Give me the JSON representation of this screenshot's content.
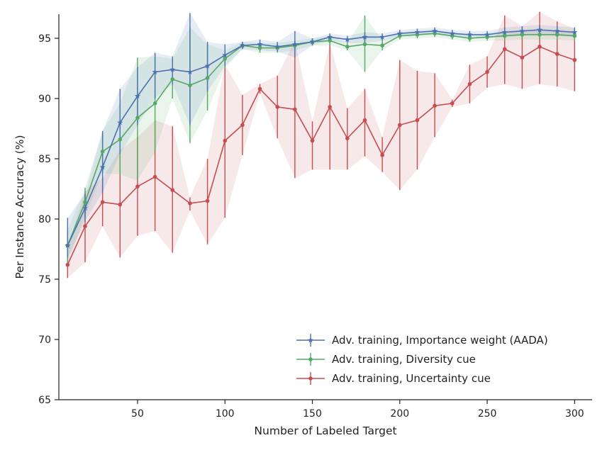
{
  "chart_data": {
    "type": "line",
    "title": "",
    "xlabel": "Number of Labeled Target",
    "ylabel": "Per Instance Accuracy (%)",
    "xlim": [
      5,
      310
    ],
    "ylim": [
      65,
      97
    ],
    "xticks": [
      50,
      100,
      150,
      200,
      250,
      300
    ],
    "yticks": [
      65,
      70,
      75,
      80,
      85,
      90,
      95
    ],
    "legend_position": "bottom-right",
    "grid": false,
    "x": [
      10,
      20,
      30,
      40,
      50,
      60,
      70,
      80,
      90,
      100,
      110,
      120,
      130,
      140,
      150,
      160,
      170,
      180,
      190,
      200,
      210,
      220,
      230,
      240,
      250,
      260,
      270,
      280,
      290,
      300
    ],
    "series": [
      {
        "name": "Adv. training, Importance weight (AADA)",
        "color": "#4c72b0",
        "marker": "star",
        "values": [
          77.8,
          80.9,
          84.3,
          88.0,
          90.2,
          92.2,
          92.4,
          92.2,
          92.7,
          93.6,
          94.4,
          94.5,
          94.3,
          94.5,
          94.7,
          95.1,
          94.9,
          95.1,
          95.1,
          95.4,
          95.5,
          95.6,
          95.4,
          95.3,
          95.3,
          95.5,
          95.6,
          95.7,
          95.6,
          95.5
        ],
        "lower": [
          76.8,
          79.8,
          82.2,
          85.4,
          87.8,
          90.0,
          91.2,
          87.8,
          90.6,
          92.7,
          94.1,
          94.0,
          93.9,
          93.4,
          94.4,
          94.8,
          94.6,
          94.6,
          94.8,
          95.1,
          95.2,
          95.3,
          95.1,
          95.0,
          95.0,
          95.1,
          95.2,
          95.3,
          95.2,
          95.1
        ],
        "upper": [
          80.1,
          82.1,
          87.3,
          90.8,
          92.6,
          93.8,
          93.5,
          97.1,
          94.7,
          94.5,
          94.7,
          94.9,
          94.7,
          95.6,
          95.0,
          95.4,
          95.2,
          95.5,
          95.4,
          95.7,
          95.8,
          95.9,
          95.7,
          95.6,
          95.6,
          95.9,
          96.0,
          96.1,
          96.0,
          95.9
        ]
      },
      {
        "name": "Adv. training, Diversity cue",
        "color": "#55a868",
        "marker": "dot",
        "values": [
          77.8,
          81.4,
          85.6,
          86.6,
          88.4,
          89.6,
          91.6,
          91.1,
          91.7,
          93.3,
          94.4,
          94.2,
          94.2,
          94.4,
          94.7,
          94.8,
          94.3,
          94.5,
          94.4,
          95.2,
          95.3,
          95.4,
          95.2,
          95.0,
          95.1,
          95.2,
          95.3,
          95.3,
          95.3,
          95.2
        ],
        "lower": [
          76.3,
          80.2,
          83.8,
          83.7,
          83.2,
          85.6,
          90.0,
          86.3,
          89.0,
          92.5,
          94.1,
          93.8,
          93.8,
          94.0,
          94.4,
          94.4,
          94.0,
          92.2,
          94.0,
          94.9,
          95.0,
          95.1,
          94.9,
          94.7,
          94.8,
          94.8,
          94.9,
          94.9,
          94.9,
          94.8
        ],
        "upper": [
          79.1,
          82.6,
          87.3,
          89.6,
          93.4,
          93.5,
          93.3,
          95.9,
          94.5,
          94.0,
          94.7,
          94.6,
          94.6,
          94.8,
          95.0,
          95.2,
          94.6,
          96.9,
          94.8,
          95.5,
          95.6,
          95.7,
          95.5,
          95.3,
          95.4,
          95.6,
          95.7,
          95.7,
          95.7,
          95.6
        ]
      },
      {
        "name": "Adv. training, Uncertainty cue",
        "color": "#c44e52",
        "marker": "dot",
        "values": [
          76.2,
          79.4,
          81.4,
          81.2,
          82.7,
          83.5,
          82.4,
          81.3,
          81.5,
          86.5,
          87.8,
          90.8,
          89.3,
          89.1,
          86.5,
          89.3,
          86.7,
          88.2,
          85.3,
          87.8,
          88.2,
          89.4,
          89.6,
          91.2,
          92.2,
          94.1,
          93.4,
          94.3,
          93.7,
          93.2
        ],
        "lower": [
          75.1,
          76.4,
          79.4,
          76.8,
          78.6,
          79.0,
          77.2,
          80.7,
          77.9,
          80.1,
          85.3,
          90.4,
          86.7,
          83.4,
          84.1,
          84.1,
          84.1,
          85.2,
          83.9,
          82.4,
          84.1,
          86.8,
          89.3,
          89.6,
          90.9,
          91.2,
          90.8,
          91.2,
          91.0,
          90.6
        ],
        "upper": [
          77.6,
          82.3,
          83.4,
          85.7,
          86.8,
          88.2,
          87.7,
          81.8,
          85.0,
          92.8,
          90.3,
          91.2,
          91.9,
          94.8,
          88.1,
          94.6,
          89.2,
          90.8,
          86.8,
          93.2,
          92.3,
          92.1,
          89.9,
          92.8,
          93.5,
          96.9,
          96.0,
          97.2,
          96.4,
          95.8
        ]
      }
    ]
  }
}
